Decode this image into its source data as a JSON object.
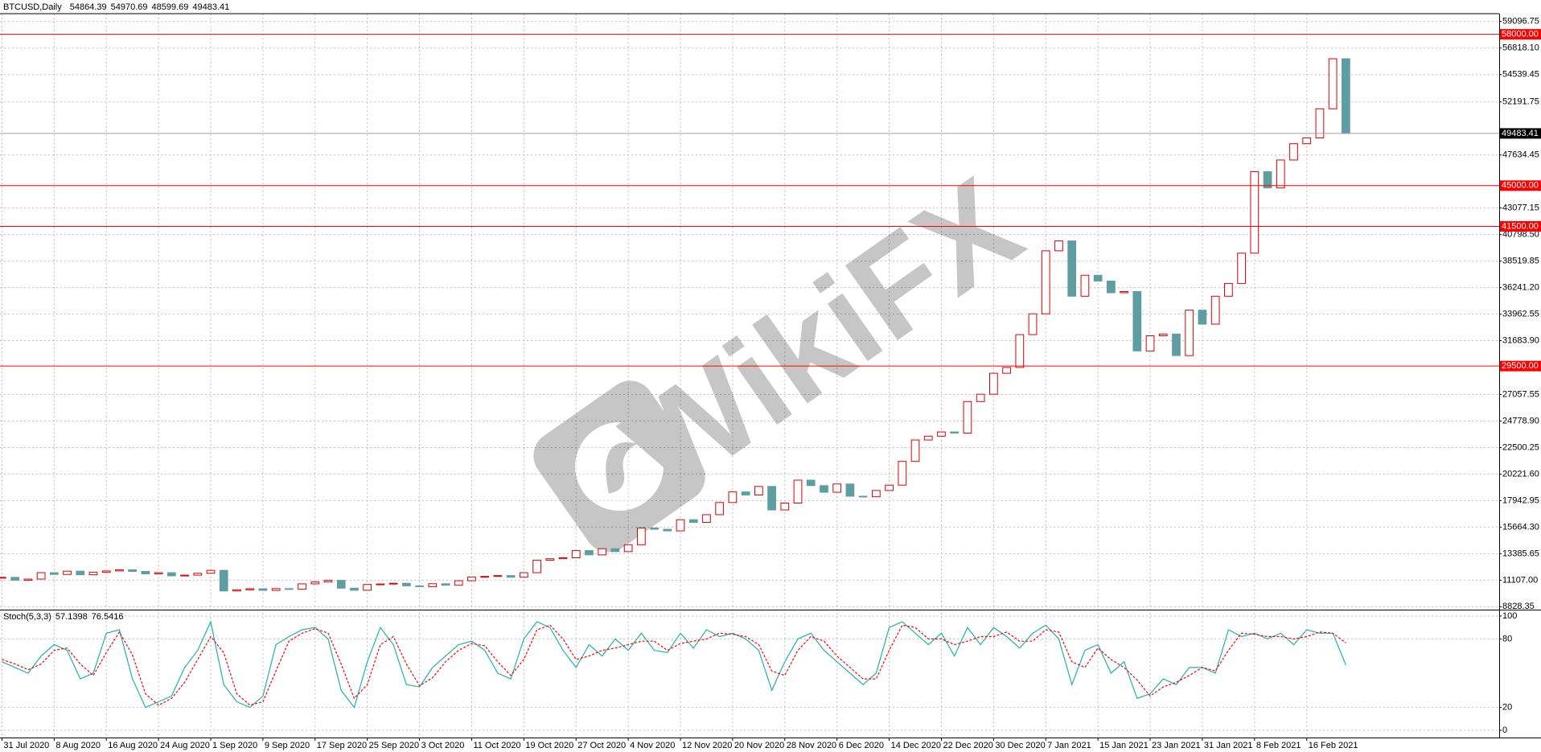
{
  "chart_data": {
    "type": "candlestick",
    "title": "BTCUSD,Daily",
    "ohlc": [
      54864.39,
      54970.69,
      48599.69,
      49483.41
    ],
    "watermark": "WikiFX",
    "up_color": "#e00000",
    "down_color": "#5f9ea0",
    "grid": true,
    "x": [
      0,
      2,
      4,
      6,
      8,
      10,
      12,
      14,
      16,
      18,
      20,
      22,
      24,
      26,
      28,
      30,
      32,
      34,
      36,
      38,
      40,
      42,
      44,
      46,
      48,
      50,
      52,
      54,
      56,
      58,
      60,
      62,
      64,
      66,
      68,
      70,
      72,
      74,
      76,
      78,
      80,
      82,
      84,
      86,
      88,
      90,
      92,
      94,
      96,
      98,
      100,
      102,
      104,
      106,
      108,
      110,
      112,
      114,
      116,
      118,
      120,
      122,
      124,
      126,
      128,
      130,
      132,
      134,
      136,
      138,
      140,
      142,
      144,
      146,
      148,
      150,
      152,
      154,
      156,
      158,
      160,
      162,
      164,
      166,
      168,
      170,
      172,
      174,
      176,
      178,
      180,
      182,
      184,
      186,
      188,
      190,
      192,
      194,
      196,
      198,
      200,
      202,
      204,
      206
    ],
    "values": [
      11350,
      11100,
      11200,
      11750,
      11600,
      11880,
      11570,
      11780,
      11900,
      12000,
      11860,
      11650,
      11750,
      11480,
      11540,
      11700,
      11950,
      10180,
      10280,
      10370,
      10230,
      10380,
      10330,
      10790,
      10950,
      11090,
      10420,
      10240,
      10740,
      10780,
      10840,
      10620,
      10550,
      10800,
      10670,
      11060,
      11380,
      11430,
      11500,
      11360,
      11750,
      12820,
      12950,
      13030,
      13650,
      13280,
      13810,
      13560,
      14150,
      15590,
      15480,
      15340,
      16300,
      16070,
      16730,
      17780,
      18690,
      18420,
      19160,
      17140,
      17730,
      19700,
      19230,
      18660,
      19370,
      18320,
      18270,
      18810,
      19270,
      21310,
      23150,
      23480,
      23840,
      23740,
      26450,
      27080,
      28880,
      29380,
      32200,
      33990,
      39400,
      40250,
      35500,
      37300,
      36800,
      35800,
      35900,
      30800,
      32100,
      32250,
      30400,
      34300,
      33100,
      35500,
      36600,
      39200,
      46200,
      44800,
      47200,
      48600,
      49100,
      51600,
      55900,
      49483.41
    ],
    "xlim": [
      -0.3,
      229.5
    ],
    "xticks": [
      {
        "value": 0,
        "label": "31 Jul 2020"
      },
      {
        "value": 8,
        "label": "8 Aug 2020"
      },
      {
        "value": 16,
        "label": "16 Aug 2020"
      },
      {
        "value": 24,
        "label": "24 Aug 2020"
      },
      {
        "value": 32,
        "label": "1 Sep 2020"
      },
      {
        "value": 40,
        "label": "9 Sep 2020"
      },
      {
        "value": 48,
        "label": "17 Sep 2020"
      },
      {
        "value": 56,
        "label": "25 Sep 2020"
      },
      {
        "value": 64,
        "label": "3 Oct 2020"
      },
      {
        "value": 72,
        "label": "11 Oct 2020"
      },
      {
        "value": 80,
        "label": "19 Oct 2020"
      },
      {
        "value": 88,
        "label": "27 Oct 2020"
      },
      {
        "value": 96,
        "label": "4 Nov 2020"
      },
      {
        "value": 104,
        "label": "12 Nov 2020"
      },
      {
        "value": 112,
        "label": "20 Nov 2020"
      },
      {
        "value": 120,
        "label": "28 Nov 2020"
      },
      {
        "value": 128,
        "label": "6 Dec 2020"
      },
      {
        "value": 136,
        "label": "14 Dec 2020"
      },
      {
        "value": 144,
        "label": "22 Dec 2020"
      },
      {
        "value": 152,
        "label": "30 Dec 2020"
      },
      {
        "value": 160,
        "label": "7 Jan 2021"
      },
      {
        "value": 168,
        "label": "15 Jan 2021"
      },
      {
        "value": 176,
        "label": "23 Jan 2021"
      },
      {
        "value": 184,
        "label": "31 Jan 2021"
      },
      {
        "value": 192,
        "label": "8 Feb 2021"
      },
      {
        "value": 200,
        "label": "16 Feb 2021"
      }
    ],
    "ylim": [
      8575,
      59772
    ],
    "yticks": [
      59096.75,
      {
        "value": 56818.1,
        "label": "56818.10"
      },
      54539.45,
      52191.75,
      47634.45,
      43077.15,
      {
        "value": 40798.5,
        "label": "40798.50"
      },
      38519.85,
      {
        "value": 36241.2,
        "label": "36241.20"
      },
      33962.55,
      {
        "value": 31683.9,
        "label": "31683.90"
      },
      27057.55,
      {
        "value": 24778.9,
        "label": "24778.90"
      },
      22500.25,
      {
        "value": 20221.6,
        "label": "20221.60"
      },
      17942.95,
      {
        "value": 15664.3,
        "label": "15664.30"
      },
      13385.65,
      {
        "value": 11107,
        "label": "11107.00"
      },
      8828.35
    ],
    "levels": [
      {
        "value": 58000,
        "label": "58000.00",
        "color": "#ff0000"
      },
      {
        "value": 45000,
        "label": "45000.00",
        "color": "#ff0000"
      },
      {
        "value": 41500,
        "label": "41500.00",
        "color": "#ff0000"
      },
      {
        "value": 29500,
        "label": "29500.00",
        "color": "#ff0000"
      }
    ],
    "current_price": 49483.41,
    "stoch": {
      "type": "line",
      "label": "Stoch(5,3,3)",
      "ylim": [
        -6.3,
        104.2
      ],
      "yticks": [
        0,
        20,
        80,
        100
      ],
      "series": [
        {
          "color": "#20b2aa",
          "dashed": false,
          "values": [
            60,
            55,
            50,
            65,
            75,
            70,
            45,
            50,
            85,
            88,
            45,
            20,
            25,
            30,
            55,
            70,
            95,
            40,
            25,
            20,
            30,
            75,
            82,
            88,
            90,
            80,
            35,
            20,
            60,
            90,
            75,
            40,
            38,
            55,
            65,
            75,
            78,
            70,
            50,
            45,
            80,
            95,
            90,
            70,
            55,
            75,
            65,
            80,
            70,
            85,
            70,
            68,
            85,
            72,
            88,
            82,
            85,
            80,
            70,
            35,
            60,
            80,
            85,
            70,
            60,
            50,
            40,
            50,
            90,
            95,
            85,
            75,
            85,
            65,
            90,
            75,
            90,
            82,
            72,
            85,
            92,
            80,
            40,
            70,
            75,
            50,
            60,
            28,
            32,
            45,
            40,
            55,
            55,
            50,
            88,
            82,
            85,
            80,
            85,
            75,
            88,
            85,
            85,
            57.1398
          ]
        },
        {
          "color": "#ff0000",
          "dashed": true,
          "values": [
            62,
            58,
            53,
            58,
            70,
            72,
            58,
            48,
            68,
            86,
            66,
            32,
            22,
            28,
            42,
            62,
            82,
            68,
            32,
            22,
            25,
            52,
            78,
            85,
            89,
            85,
            58,
            28,
            40,
            75,
            82,
            58,
            39,
            46,
            60,
            70,
            76,
            74,
            60,
            48,
            62,
            88,
            92,
            80,
            62,
            65,
            70,
            72,
            75,
            78,
            78,
            70,
            76,
            78,
            80,
            85,
            84,
            82,
            75,
            52,
            48,
            70,
            82,
            78,
            65,
            55,
            45,
            45,
            70,
            92,
            90,
            80,
            80,
            75,
            78,
            82,
            82,
            86,
            78,
            78,
            88,
            86,
            60,
            55,
            72,
            62,
            55,
            44,
            30,
            38,
            42,
            48,
            55,
            52,
            70,
            85,
            84,
            82,
            82,
            80,
            82,
            86,
            85,
            76.5416
          ]
        }
      ]
    }
  }
}
